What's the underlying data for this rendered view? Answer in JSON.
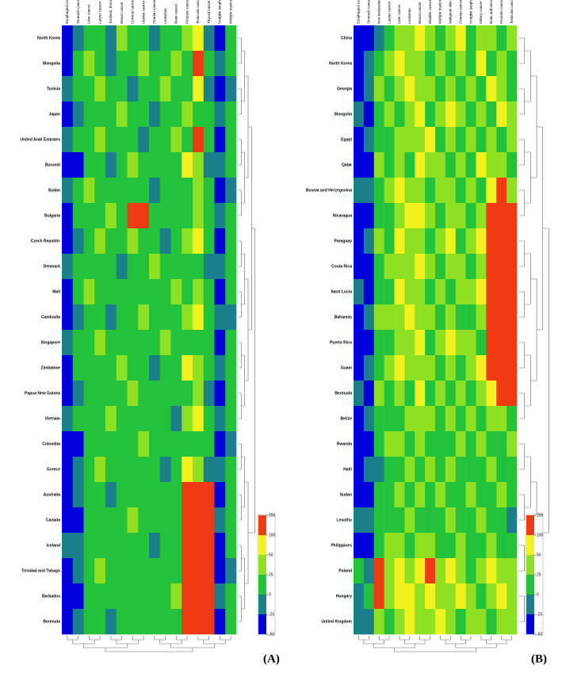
{
  "chart_data": [
    {
      "type": "heatmap",
      "panel_label": "(A)",
      "categories": [
        "North Korea",
        "Mongolia",
        "Tunisia",
        "Japan",
        "United Arab Emirates",
        "Burundi",
        "Sudan",
        "Bulgaria",
        "Czech Republic",
        "Denmark",
        "Mali",
        "Cambodia",
        "Singapore",
        "Zimbabwe",
        "Papua New Guinea",
        "Vietnam",
        "Colombia",
        "Greece",
        "Australia",
        "Canada",
        "Iceland",
        "Trinidad and Tobago",
        "Barbados",
        "Bermuda"
      ],
      "columns": [
        "Esophageal cancer",
        "Stomach cancer",
        "Liver cancer",
        "Larynx cancer",
        "Tracheal, bronchus, and lung cancer",
        "Breast cancer",
        "Cervical cancer",
        "Uterine cancer",
        "Ovarian cancer",
        "Leukemia",
        "Brain cancer",
        "Prostate cancer",
        "Testicular cancer",
        "Thyroid cancer",
        "Hodgkin lymphoma",
        "Multiple myeloma"
      ],
      "values": [
        [
          -50,
          -25,
          0,
          0,
          -25,
          25,
          0,
          0,
          -25,
          0,
          0,
          25,
          50,
          -25,
          -50,
          0
        ],
        [
          -50,
          0,
          25,
          0,
          -25,
          0,
          0,
          25,
          0,
          0,
          25,
          0,
          100,
          0,
          -25,
          0
        ],
        [
          -25,
          0,
          0,
          25,
          0,
          0,
          -25,
          0,
          0,
          25,
          0,
          0,
          50,
          -25,
          -50,
          -25
        ],
        [
          -50,
          -25,
          0,
          0,
          0,
          25,
          0,
          0,
          -25,
          0,
          0,
          25,
          0,
          0,
          -25,
          0
        ],
        [
          -25,
          0,
          0,
          25,
          0,
          0,
          0,
          -25,
          0,
          0,
          25,
          0,
          200,
          0,
          -50,
          0
        ],
        [
          -50,
          -50,
          0,
          0,
          -25,
          0,
          25,
          0,
          0,
          0,
          0,
          50,
          25,
          -25,
          -25,
          0
        ],
        [
          -25,
          0,
          25,
          0,
          0,
          0,
          0,
          0,
          -25,
          0,
          0,
          0,
          25,
          0,
          -50,
          -25
        ],
        [
          -50,
          0,
          0,
          0,
          25,
          0,
          200,
          100,
          0,
          0,
          0,
          0,
          25,
          0,
          -25,
          0
        ],
        [
          -50,
          -25,
          0,
          25,
          0,
          0,
          25,
          0,
          0,
          -25,
          0,
          25,
          50,
          0,
          -50,
          0
        ],
        [
          -25,
          0,
          0,
          0,
          0,
          -25,
          0,
          0,
          25,
          0,
          0,
          0,
          0,
          -25,
          -25,
          0
        ],
        [
          -50,
          0,
          25,
          0,
          0,
          0,
          0,
          0,
          0,
          0,
          25,
          0,
          25,
          0,
          -50,
          0
        ],
        [
          -50,
          -25,
          0,
          0,
          -25,
          0,
          0,
          25,
          0,
          0,
          0,
          25,
          50,
          0,
          -25,
          -25
        ],
        [
          -25,
          0,
          0,
          25,
          0,
          0,
          0,
          0,
          0,
          25,
          0,
          0,
          0,
          0,
          -50,
          0
        ],
        [
          -50,
          0,
          0,
          0,
          0,
          25,
          0,
          0,
          -25,
          0,
          0,
          50,
          25,
          0,
          -25,
          0
        ],
        [
          -50,
          -25,
          0,
          0,
          0,
          0,
          25,
          0,
          0,
          0,
          0,
          0,
          25,
          -25,
          -50,
          0
        ],
        [
          -25,
          0,
          0,
          0,
          25,
          0,
          0,
          0,
          0,
          0,
          -25,
          25,
          50,
          0,
          -25,
          0
        ],
        [
          -50,
          -50,
          0,
          0,
          0,
          0,
          0,
          25,
          0,
          0,
          0,
          0,
          0,
          0,
          -50,
          -25
        ],
        [
          -50,
          -25,
          0,
          25,
          0,
          0,
          0,
          0,
          0,
          -25,
          0,
          50,
          25,
          -25,
          -25,
          0
        ],
        [
          -50,
          -25,
          0,
          0,
          -25,
          0,
          0,
          0,
          0,
          0,
          0,
          200,
          100,
          200,
          -50,
          0
        ],
        [
          -50,
          -50,
          0,
          0,
          0,
          0,
          25,
          0,
          0,
          0,
          0,
          200,
          200,
          100,
          -25,
          0
        ],
        [
          -25,
          -25,
          0,
          0,
          0,
          0,
          0,
          0,
          -25,
          0,
          0,
          200,
          200,
          200,
          -50,
          0
        ],
        [
          -50,
          -25,
          0,
          25,
          0,
          0,
          0,
          0,
          0,
          0,
          0,
          100,
          200,
          200,
          -50,
          -25
        ],
        [
          -50,
          -50,
          0,
          0,
          0,
          0,
          0,
          0,
          0,
          0,
          25,
          200,
          200,
          100,
          -25,
          0
        ],
        [
          -50,
          -25,
          0,
          0,
          -25,
          0,
          0,
          0,
          0,
          0,
          0,
          100,
          200,
          200,
          -50,
          0
        ]
      ],
      "colorbar_ticks": [
        -50,
        -25,
        0,
        25,
        50,
        100,
        200
      ],
      "colors": [
        "#0000dd",
        "#1b7f8c",
        "#22c33a",
        "#8ee022",
        "#f2f21e",
        "#f03a14"
      ]
    },
    {
      "type": "heatmap",
      "panel_label": "(B)",
      "categories": [
        "China",
        "North Korea",
        "Georgia",
        "Mongolia",
        "Egypt",
        "Qatar",
        "Bosnia and Herzegovina",
        "Nicaragua",
        "Paraguay",
        "Costa Rica",
        "Saint Lucia",
        "Bahamas",
        "Puerto Rico",
        "Guam",
        "Bermuda",
        "Belize",
        "Rwanda",
        "Haiti",
        "Sudan",
        "Lesotho",
        "Philippines",
        "Poland",
        "Hungary",
        "United Kingdom"
      ],
      "columns": [
        "Esophageal cancer",
        "Stomach cancer",
        "Non-melanoma skin cancer",
        "Larynx cancer",
        "Liver cancer",
        "Leukemia",
        "Breast cancer",
        "Bladder cancer",
        "Multiple myeloma",
        "Malignant skin melanoma",
        "Ovarian cancer",
        "Hodgkin lymphoma",
        "Kidney cancer",
        "Brain and nervous system cancer",
        "Prostate cancer",
        "Testicular cancer"
      ],
      "values": [
        [
          -50,
          -50,
          -25,
          0,
          25,
          25,
          50,
          25,
          0,
          25,
          50,
          0,
          25,
          25,
          0,
          25
        ],
        [
          -50,
          -25,
          0,
          25,
          50,
          25,
          25,
          0,
          25,
          0,
          25,
          0,
          50,
          0,
          25,
          0
        ],
        [
          -50,
          -25,
          25,
          0,
          25,
          50,
          25,
          25,
          0,
          25,
          0,
          25,
          0,
          50,
          25,
          0
        ],
        [
          -25,
          -50,
          0,
          25,
          0,
          25,
          50,
          0,
          25,
          50,
          25,
          0,
          25,
          0,
          50,
          25
        ],
        [
          -50,
          -25,
          0,
          0,
          25,
          25,
          25,
          50,
          0,
          25,
          0,
          25,
          0,
          25,
          0,
          25
        ],
        [
          -50,
          -50,
          25,
          0,
          25,
          0,
          50,
          25,
          25,
          0,
          25,
          0,
          50,
          25,
          25,
          0
        ],
        [
          -25,
          -25,
          0,
          25,
          50,
          25,
          25,
          0,
          25,
          25,
          0,
          25,
          0,
          50,
          100,
          25
        ],
        [
          -50,
          -50,
          0,
          0,
          25,
          50,
          50,
          25,
          0,
          25,
          25,
          0,
          25,
          100,
          200,
          200
        ],
        [
          -50,
          -25,
          25,
          0,
          50,
          25,
          25,
          0,
          25,
          50,
          0,
          25,
          50,
          200,
          200,
          200
        ],
        [
          -50,
          -50,
          0,
          25,
          25,
          25,
          50,
          25,
          0,
          25,
          25,
          0,
          25,
          200,
          200,
          100
        ],
        [
          -25,
          -50,
          0,
          0,
          50,
          25,
          25,
          0,
          25,
          0,
          25,
          25,
          50,
          200,
          200,
          200
        ],
        [
          -50,
          -25,
          25,
          25,
          25,
          50,
          25,
          25,
          0,
          25,
          0,
          0,
          25,
          100,
          200,
          200
        ],
        [
          -50,
          -50,
          0,
          0,
          25,
          25,
          50,
          0,
          25,
          50,
          25,
          25,
          0,
          200,
          200,
          200
        ],
        [
          -50,
          -25,
          0,
          25,
          50,
          25,
          25,
          25,
          0,
          25,
          0,
          25,
          50,
          200,
          100,
          200
        ],
        [
          -25,
          -50,
          25,
          0,
          25,
          0,
          50,
          0,
          25,
          0,
          25,
          0,
          25,
          50,
          200,
          200
        ],
        [
          -50,
          -25,
          0,
          0,
          0,
          25,
          25,
          25,
          0,
          25,
          0,
          25,
          0,
          25,
          25,
          0
        ],
        [
          -50,
          -50,
          0,
          25,
          25,
          0,
          25,
          0,
          0,
          0,
          25,
          0,
          25,
          0,
          0,
          25
        ],
        [
          -50,
          -25,
          -25,
          0,
          0,
          25,
          0,
          25,
          0,
          25,
          0,
          0,
          0,
          25,
          0,
          0
        ],
        [
          -50,
          -50,
          0,
          0,
          25,
          0,
          25,
          0,
          25,
          0,
          0,
          25,
          0,
          0,
          25,
          0
        ],
        [
          -25,
          -25,
          0,
          0,
          0,
          25,
          0,
          0,
          0,
          25,
          0,
          0,
          25,
          0,
          0,
          -25
        ],
        [
          -50,
          -50,
          0,
          25,
          25,
          0,
          25,
          25,
          0,
          0,
          25,
          0,
          0,
          25,
          0,
          0
        ],
        [
          0,
          -25,
          200,
          25,
          50,
          25,
          50,
          100,
          25,
          50,
          25,
          0,
          25,
          50,
          25,
          25
        ],
        [
          -25,
          0,
          100,
          25,
          50,
          50,
          25,
          50,
          25,
          25,
          50,
          25,
          0,
          25,
          50,
          25
        ],
        [
          -25,
          -25,
          25,
          0,
          25,
          50,
          25,
          25,
          50,
          25,
          0,
          25,
          25,
          0,
          25,
          25
        ]
      ],
      "colorbar_ticks": [
        -50,
        -25,
        0,
        25,
        50,
        100,
        200
      ],
      "colors": [
        "#0000dd",
        "#1b7f8c",
        "#22c33a",
        "#8ee022",
        "#f2f21e",
        "#f03a14"
      ]
    }
  ]
}
